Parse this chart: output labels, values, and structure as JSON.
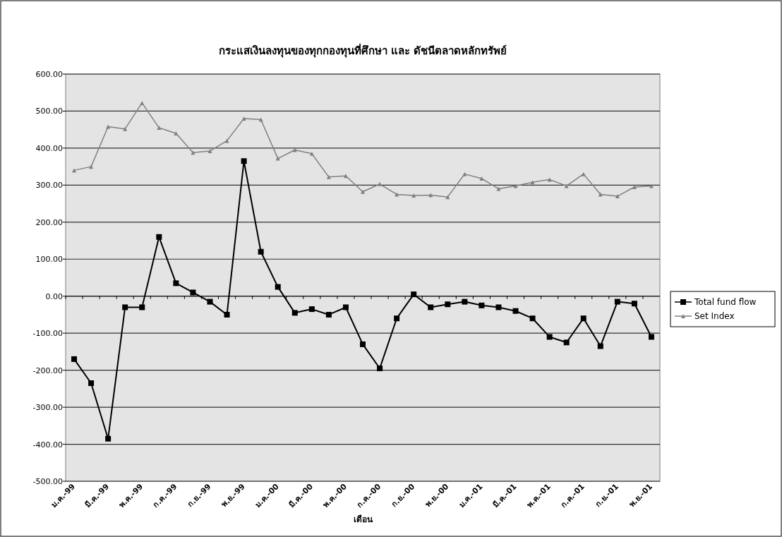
{
  "chart_data": {
    "type": "line",
    "title": "กระแสเงินลงทุนของทุกกองทุนที่ศึกษา และ ดัชนีตลาดหลักทรัพย์",
    "xlabel": "เดือน",
    "categories": [
      "ม.ค.-99",
      null,
      "มี.ค.-99",
      null,
      "พ.ค.-99",
      null,
      "ก.ค.-99",
      null,
      "ก.ย.-99",
      null,
      "พ.ย.-99",
      null,
      "ม.ค.-00",
      null,
      "มี.ค.-00",
      null,
      "พ.ค.-00",
      null,
      "ก.ค.-00",
      null,
      "ก.ย.-00",
      null,
      "พ.ย.-00",
      null,
      "ม.ค.-01",
      null,
      "มี.ค.-01",
      null,
      "พ.ค.-01",
      null,
      "ก.ค.-01",
      null,
      "ก.ย.-01",
      null,
      "พ.ย.-01"
    ],
    "series": [
      {
        "name": "Total fund flow",
        "color": "#000000",
        "marker": "square",
        "values": [
          -170,
          -235,
          -385,
          -30,
          -30,
          160,
          35,
          10,
          -15,
          -50,
          365,
          120,
          25,
          -45,
          -35,
          -50,
          -30,
          -130,
          -195,
          -60,
          5,
          -30,
          -22,
          -15,
          -25,
          -30,
          -40,
          -60,
          -110,
          -125,
          -60,
          -135,
          -15,
          -20,
          -110
        ]
      },
      {
        "name": "Set Index",
        "color": "#808080",
        "marker": "triangle",
        "values": [
          340,
          350,
          458,
          452,
          522,
          455,
          440,
          388,
          392,
          420,
          480,
          477,
          372,
          395,
          385,
          322,
          325,
          282,
          303,
          275,
          272,
          273,
          268,
          330,
          318,
          290,
          298,
          308,
          315,
          298,
          330,
          275,
          270,
          295,
          298
        ]
      }
    ],
    "ylim": [
      -500,
      600
    ],
    "yticks": [
      {
        "value": -500,
        "label": "-500.00"
      },
      {
        "value": -400,
        "label": "-400.00"
      },
      {
        "value": -300,
        "label": "-300.00"
      },
      {
        "value": -200,
        "label": "-200.00"
      },
      {
        "value": -100,
        "label": "-100.00"
      },
      {
        "value": 0,
        "label": "0.00"
      },
      {
        "value": 100,
        "label": "100.00"
      },
      {
        "value": 200,
        "label": "200.00"
      },
      {
        "value": 300,
        "label": "300.00"
      },
      {
        "value": 400,
        "label": "400.00"
      },
      {
        "value": 500,
        "label": "500.00"
      },
      {
        "value": 600,
        "label": "600.00"
      }
    ],
    "grid": "y",
    "legend": "right"
  }
}
